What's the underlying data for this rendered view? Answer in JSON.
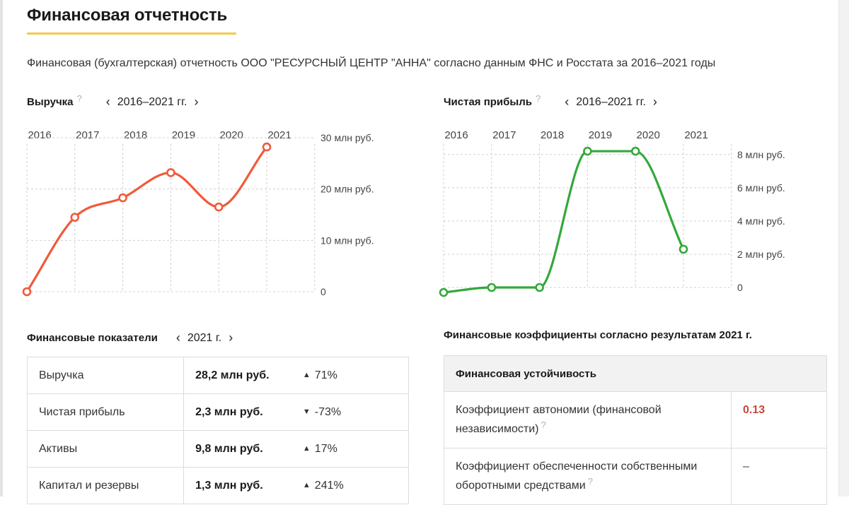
{
  "page": {
    "title": "Финансовая отчетность",
    "subtitle": "Финансовая (бухгалтерская) отчетность ООО \"РЕСУРСНЫЙ ЦЕНТР \"АННА\" согласно данным ФНС и Росстата за 2016–2021 годы"
  },
  "colors": {
    "revenue_line": "#f05a3a",
    "profit_line": "#34a83a",
    "accent_underline": "#f2c94c",
    "up": "#2e9e3f",
    "down": "#d84a3a"
  },
  "icons": {
    "help": "?",
    "prev": "‹",
    "next": "›"
  },
  "chart_data": [
    {
      "type": "line",
      "title": "Выручка",
      "period": "2016–2021 гг.",
      "x": [
        "2016",
        "2017",
        "2018",
        "2019",
        "2020",
        "2021"
      ],
      "y_tick_values": [
        0,
        10,
        20,
        30
      ],
      "y_tick_labels": [
        "0",
        "10 млн руб.",
        "20 млн руб.",
        "30 млн руб."
      ],
      "ylim": [
        0,
        30
      ],
      "series": [
        {
          "values": [
            0,
            14.5,
            18.3,
            23.2,
            16.5,
            28.2
          ]
        }
      ],
      "grid": true
    },
    {
      "type": "line",
      "title": "Чистая прибыль",
      "period": "2016–2021 гг.",
      "x": [
        "2016",
        "2017",
        "2018",
        "2019",
        "2020",
        "2021"
      ],
      "y_tick_values": [
        0,
        2,
        4,
        6,
        8
      ],
      "y_tick_labels": [
        "0",
        "2 млн руб.",
        "4 млн руб.",
        "6 млн руб.",
        "8 млн руб."
      ],
      "ylim": [
        0,
        8.5
      ],
      "series": [
        {
          "values": [
            -0.3,
            0,
            0,
            8.2,
            8.2,
            2.3
          ]
        }
      ],
      "grid": true
    }
  ],
  "indicators": {
    "title": "Финансовые показатели",
    "period": "2021 г.",
    "rows": [
      {
        "name": "Выручка",
        "value": "28,2 млн руб.",
        "change": "71%",
        "dir": "up"
      },
      {
        "name": "Чистая прибыль",
        "value": "2,3 млн руб.",
        "change": "-73%",
        "dir": "down"
      },
      {
        "name": "Активы",
        "value": "9,8 млн руб.",
        "change": "17%",
        "dir": "up"
      },
      {
        "name": "Капитал и резервы",
        "value": "1,3 млн руб.",
        "change": "241%",
        "dir": "up"
      }
    ]
  },
  "coefficients": {
    "title": "Финансовые коэффициенты согласно результатам 2021 г.",
    "section": "Финансовая устойчивость",
    "rows": [
      {
        "name": "Коэффициент автономии (финансовой независимости)",
        "value": "0.13"
      },
      {
        "name": "Коэффициент обеспеченности собственными оборотными средствами",
        "value": "–"
      }
    ]
  }
}
